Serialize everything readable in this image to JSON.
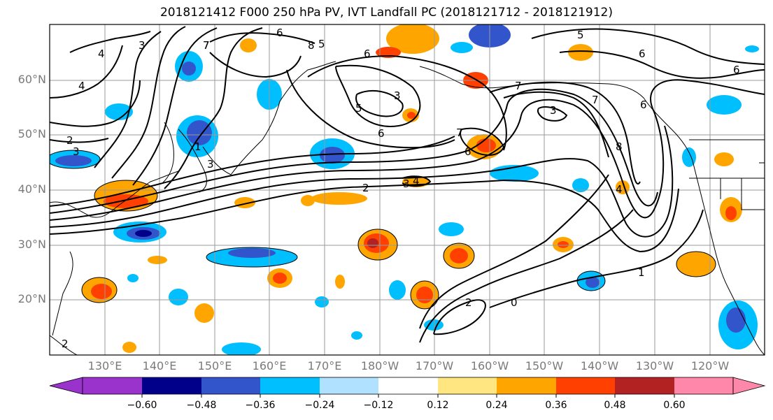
{
  "title": "2018121412 F000 250 hPa PV, IVT Landfall PC (2018121712 - 2018121912)",
  "lat_labels": [
    "60°N",
    "50°N",
    "40°N",
    "30°N",
    "20°N"
  ],
  "lon_labels": [
    "130°E",
    "140°E",
    "150°E",
    "160°E",
    "170°E",
    "180°W",
    "170°W",
    "160°W",
    "150°W",
    "140°W",
    "130°W",
    "120°W"
  ],
  "contour_labels": [
    "4",
    "3",
    "4",
    "5",
    "6",
    "7",
    "6",
    "5",
    "6",
    "3",
    "5",
    "6",
    "7",
    "6",
    "3",
    "7",
    "7",
    "6",
    "8",
    "3",
    "4",
    "4",
    "2",
    "2",
    "2",
    "3",
    "3",
    "7",
    "1",
    "2",
    "0",
    "1",
    "8",
    "6"
  ],
  "colorbar": {
    "colors": [
      "#9933cc",
      "#00008b",
      "#3355cc",
      "#00bfff",
      "#b0e2ff",
      "#ffffff",
      "#ffe680",
      "#ffa500",
      "#ff4000",
      "#b22222",
      "#ff88aa"
    ],
    "tick_labels": [
      "−0.60",
      "−0.48",
      "−0.36",
      "−0.24",
      "−0.12",
      "0.12",
      "0.24",
      "0.36",
      "0.48",
      "0.60"
    ]
  }
}
